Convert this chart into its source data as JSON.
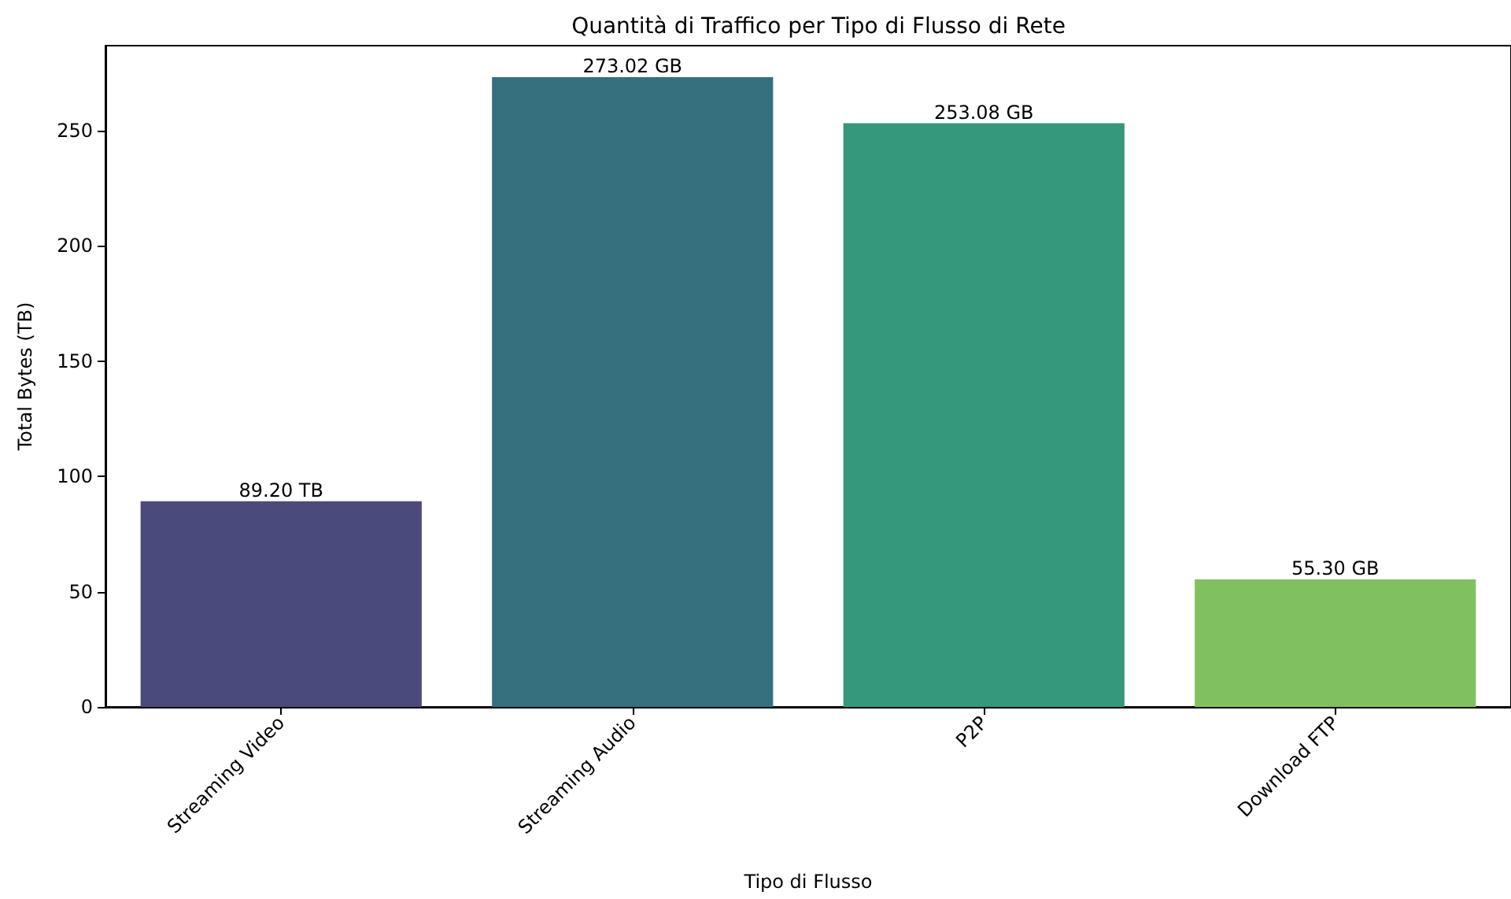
{
  "chart_data": {
    "type": "bar",
    "title": "Quantità di Traffico per Tipo di Flusso di Rete",
    "xlabel": "Tipo di Flusso",
    "ylabel": "Total Bytes (TB)",
    "categories": [
      "Streaming Video",
      "Streaming Audio",
      "P2P",
      "Download FTP"
    ],
    "values": [
      89.2,
      273.02,
      253.08,
      55.3
    ],
    "colors": [
      "#4b4a7c",
      "#36707f",
      "#35977b",
      "#80c060"
    ],
    "value_labels": [
      "89.20 TB",
      "273.02 GB",
      "253.08 GB",
      "55.30 GB"
    ],
    "ylim": [
      0,
      286.7
    ],
    "yticks": [
      0,
      50,
      100,
      150,
      200,
      250
    ],
    "grid": false
  }
}
